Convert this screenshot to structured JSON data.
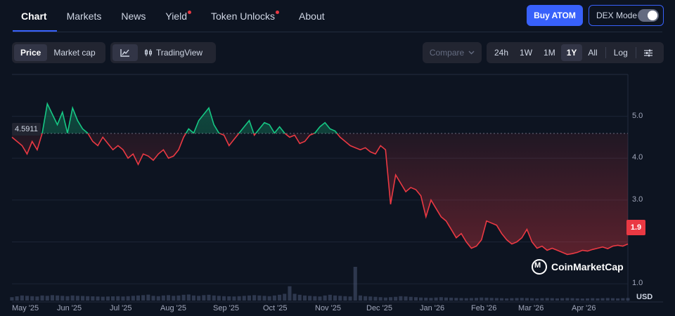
{
  "tabs": [
    {
      "label": "Chart",
      "active": true,
      "dot": false
    },
    {
      "label": "Markets",
      "active": false,
      "dot": false
    },
    {
      "label": "News",
      "active": false,
      "dot": false
    },
    {
      "label": "Yield",
      "active": false,
      "dot": true
    },
    {
      "label": "Token Unlocks",
      "active": false,
      "dot": true
    },
    {
      "label": "About",
      "active": false,
      "dot": false
    }
  ],
  "header": {
    "buy_label": "Buy ATOM",
    "dex_label": "DEX Mode",
    "dex_on": false
  },
  "controls": {
    "metric": [
      "Price",
      "Market cap"
    ],
    "metric_active": "Price",
    "chart_mode_label": "TradingView",
    "compare_label": "Compare",
    "ranges": [
      "24h",
      "1W",
      "1M",
      "1Y",
      "All"
    ],
    "range_active": "1Y",
    "log_label": "Log"
  },
  "colors": {
    "up": "#16c784",
    "down": "#ea3943",
    "accent": "#3861fb"
  },
  "chart_data": {
    "type": "line",
    "x_ticks": [
      "May '25",
      "Jun '25",
      "Jul '25",
      "Aug '25",
      "Sep '25",
      "Oct '25",
      "Nov '25",
      "Dec '25",
      "Jan '26",
      "Feb '26",
      "Mar '26",
      "Apr '26"
    ],
    "y_ticks": [
      "5.0",
      "4.0",
      "3.0",
      "1.0"
    ],
    "ylim": [
      0.6,
      6.0
    ],
    "reference_value": 4.5911,
    "reference_label": "4.5911",
    "current_label": "1.9",
    "unit_label": "USD",
    "watermark": "CoinMarketCap",
    "x": [
      "May '25",
      "May '25",
      "May '25",
      "May '25",
      "May '25",
      "May '25",
      "May '25",
      "May '25",
      "May '25",
      "May '25",
      "Jun '25",
      "Jun '25",
      "Jun '25",
      "Jun '25",
      "Jun '25",
      "Jun '25",
      "Jun '25",
      "Jun '25",
      "Jun '25",
      "Jun '25",
      "Jul '25",
      "Jul '25",
      "Jul '25",
      "Jul '25",
      "Jul '25",
      "Jul '25",
      "Jul '25",
      "Jul '25",
      "Jul '25",
      "Jul '25",
      "Aug '25",
      "Aug '25",
      "Aug '25",
      "Aug '25",
      "Aug '25",
      "Aug '25",
      "Aug '25",
      "Aug '25",
      "Aug '25",
      "Aug '25",
      "Sep '25",
      "Sep '25",
      "Sep '25",
      "Sep '25",
      "Sep '25",
      "Sep '25",
      "Sep '25",
      "Sep '25",
      "Sep '25",
      "Sep '25",
      "Oct '25",
      "Oct '25",
      "Oct '25",
      "Oct '25",
      "Oct '25",
      "Oct '25",
      "Oct '25",
      "Oct '25",
      "Oct '25",
      "Oct '25",
      "Nov '25",
      "Nov '25",
      "Nov '25",
      "Nov '25",
      "Nov '25",
      "Nov '25",
      "Nov '25",
      "Nov '25",
      "Nov '25",
      "Nov '25",
      "Dec '25",
      "Dec '25",
      "Dec '25",
      "Dec '25",
      "Dec '25",
      "Dec '25",
      "Dec '25",
      "Dec '25",
      "Dec '25",
      "Dec '25",
      "Jan '26",
      "Jan '26",
      "Jan '26",
      "Jan '26",
      "Jan '26",
      "Jan '26",
      "Jan '26",
      "Jan '26",
      "Jan '26",
      "Jan '26",
      "Feb '26",
      "Feb '26",
      "Feb '26",
      "Feb '26",
      "Feb '26",
      "Feb '26",
      "Feb '26",
      "Feb '26",
      "Feb '26",
      "Feb '26",
      "Mar '26",
      "Mar '26",
      "Mar '26",
      "Mar '26",
      "Mar '26",
      "Mar '26",
      "Mar '26",
      "Mar '26",
      "Mar '26",
      "Mar '26",
      "Apr '26",
      "Apr '26",
      "Apr '26",
      "Apr '26",
      "Apr '26",
      "Apr '26",
      "Apr '26",
      "Apr '26",
      "Apr '26",
      "Apr '26",
      "Apr '26",
      "Apr '26",
      "Apr '26"
    ],
    "values": [
      4.5,
      4.4,
      4.3,
      4.1,
      4.4,
      4.2,
      4.6,
      5.3,
      5.05,
      4.8,
      5.1,
      4.6,
      5.2,
      4.9,
      4.7,
      4.6,
      4.4,
      4.3,
      4.5,
      4.35,
      4.2,
      4.3,
      4.2,
      4.0,
      4.1,
      3.85,
      4.1,
      4.05,
      3.95,
      4.1,
      4.2,
      4.0,
      4.05,
      4.2,
      4.5,
      4.7,
      4.6,
      4.9,
      5.05,
      5.2,
      4.8,
      4.6,
      4.55,
      4.3,
      4.45,
      4.6,
      4.75,
      4.9,
      4.55,
      4.7,
      4.85,
      4.8,
      4.6,
      4.75,
      4.6,
      4.5,
      4.55,
      4.35,
      4.4,
      4.55,
      4.6,
      4.75,
      4.85,
      4.7,
      4.65,
      4.5,
      4.4,
      4.3,
      4.25,
      4.2,
      4.25,
      4.15,
      4.1,
      4.3,
      4.2,
      2.9,
      3.6,
      3.4,
      3.2,
      3.3,
      3.25,
      3.1,
      2.6,
      3.0,
      2.8,
      2.6,
      2.5,
      2.3,
      2.1,
      2.2,
      2.0,
      1.85,
      1.9,
      2.05,
      2.5,
      2.45,
      2.4,
      2.2,
      2.05,
      1.95,
      2.0,
      2.1,
      2.3,
      2.0,
      1.85,
      1.9,
      1.8,
      1.85,
      1.8,
      1.75,
      1.7,
      1.72,
      1.75,
      1.8,
      1.78,
      1.82,
      1.85,
      1.88,
      1.84,
      1.9,
      1.92,
      1.9,
      1.95
    ],
    "volume": [
      0.2,
      0.25,
      0.3,
      0.28,
      0.26,
      0.24,
      0.3,
      0.28,
      0.32,
      0.3,
      0.28,
      0.26,
      0.3,
      0.28,
      0.27,
      0.26,
      0.25,
      0.24,
      0.23,
      0.24,
      0.25,
      0.26,
      0.24,
      0.26,
      0.28,
      0.3,
      0.32,
      0.35,
      0.28,
      0.26,
      0.3,
      0.32,
      0.28,
      0.3,
      0.34,
      0.36,
      0.3,
      0.28,
      0.32,
      0.34,
      0.3,
      0.28,
      0.26,
      0.25,
      0.24,
      0.26,
      0.28,
      0.3,
      0.32,
      0.3,
      0.28,
      0.26,
      0.3,
      0.34,
      0.4,
      0.85,
      0.4,
      0.34,
      0.3,
      0.28,
      0.26,
      0.24,
      0.3,
      0.34,
      0.3,
      0.28,
      0.26,
      0.24,
      2.0,
      0.3,
      0.26,
      0.24,
      0.22,
      0.2,
      0.18,
      0.2,
      0.22,
      0.26,
      0.24,
      0.22,
      0.2,
      0.18,
      0.17,
      0.16,
      0.18,
      0.2,
      0.18,
      0.17,
      0.16,
      0.15,
      0.14,
      0.15,
      0.16,
      0.18,
      0.17,
      0.16,
      0.15,
      0.14,
      0.13,
      0.14,
      0.15,
      0.16,
      0.15,
      0.14,
      0.13,
      0.14,
      0.15,
      0.14,
      0.13,
      0.14,
      0.15,
      0.14,
      0.13,
      0.12,
      0.13,
      0.14,
      0.13,
      0.14,
      0.15,
      0.14,
      0.13,
      0.14,
      0.15
    ]
  }
}
